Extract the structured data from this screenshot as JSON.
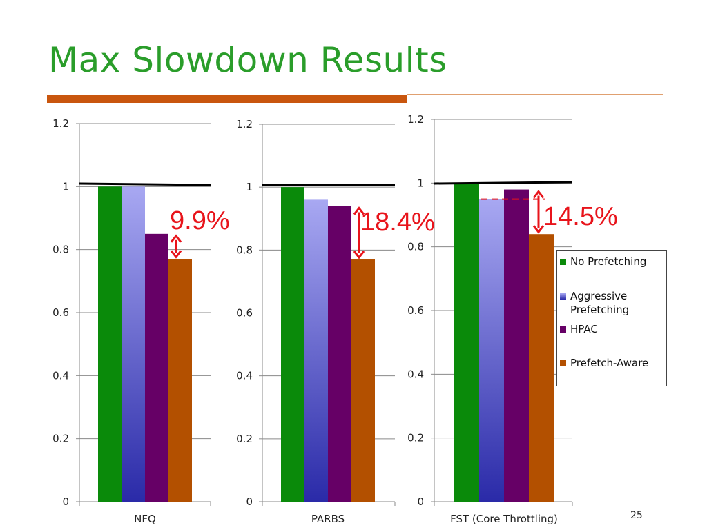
{
  "slide": {
    "title": "Max Slowdown Results",
    "page_number": "25"
  },
  "colors": {
    "title": "#2a9d2a",
    "rule": "#c9560e",
    "no_prefetching": "#0a8a0a",
    "aggressive_top": "#a8a8f2",
    "aggressive_bottom": "#2a2aa8",
    "hpac": "#660066",
    "prefetch_aware": "#b35000",
    "annotation": "#e8141b",
    "baseline": "#000000"
  },
  "legend": [
    {
      "label": "No Prefetching",
      "color": "#0a8a0a"
    },
    {
      "label": "Aggressive Prefetching",
      "color": "#6b6bd8"
    },
    {
      "label": "HPAC",
      "color": "#660066"
    },
    {
      "label": "Prefetch-Aware",
      "color": "#b35000"
    }
  ],
  "chart_data": [
    {
      "type": "bar",
      "categories": [
        "NFQ"
      ],
      "series": [
        {
          "name": "No Prefetching",
          "values": [
            1.0
          ]
        },
        {
          "name": "Aggressive Prefetching",
          "values": [
            1.0
          ]
        },
        {
          "name": "HPAC",
          "values": [
            0.85
          ]
        },
        {
          "name": "Prefetch-Aware",
          "values": [
            0.77
          ]
        }
      ],
      "ylim": [
        0,
        1.2
      ],
      "yticks": [
        "0",
        "0.2",
        "0.4",
        "0.6",
        "0.8",
        "1",
        "1.2"
      ],
      "baseline": 1.0,
      "annotation": "9.9%"
    },
    {
      "type": "bar",
      "categories": [
        "PARBS"
      ],
      "series": [
        {
          "name": "No Prefetching",
          "values": [
            1.0
          ]
        },
        {
          "name": "Aggressive Prefetching",
          "values": [
            0.96
          ]
        },
        {
          "name": "HPAC",
          "values": [
            0.94
          ]
        },
        {
          "name": "Prefetch-Aware",
          "values": [
            0.77
          ]
        }
      ],
      "ylim": [
        0,
        1.2
      ],
      "yticks": [
        "0",
        "0.2",
        "0.4",
        "0.6",
        "0.8",
        "1",
        "1.2"
      ],
      "baseline": 1.0,
      "annotation": "18.4%"
    },
    {
      "type": "bar",
      "categories": [
        "FST (Core Throttling)"
      ],
      "series": [
        {
          "name": "No Prefetching",
          "values": [
            1.0
          ]
        },
        {
          "name": "Aggressive Prefetching",
          "values": [
            0.95
          ]
        },
        {
          "name": "HPAC",
          "values": [
            0.98
          ]
        },
        {
          "name": "Prefetch-Aware",
          "values": [
            0.84
          ]
        }
      ],
      "ylim": [
        0,
        1.2
      ],
      "yticks": [
        "0",
        "0.2",
        "0.4",
        "0.6",
        "0.8",
        "1",
        "1.2"
      ],
      "baseline": 1.0,
      "annotation": "14.5%"
    }
  ]
}
